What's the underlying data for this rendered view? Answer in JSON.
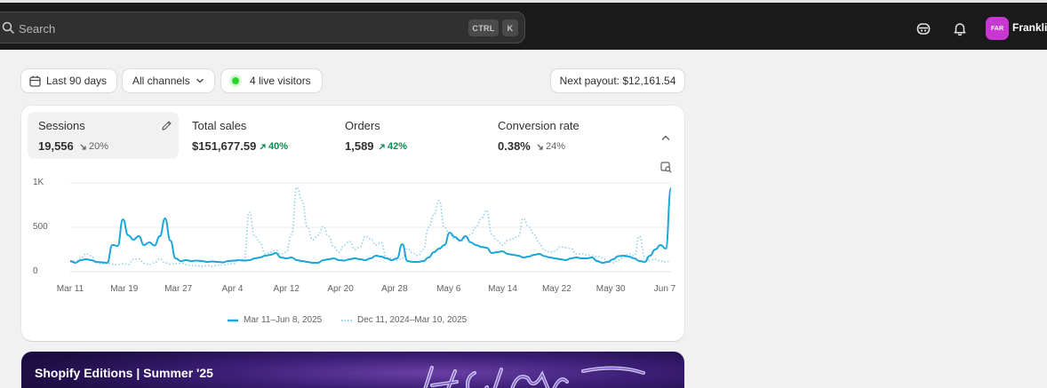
{
  "topbar": {
    "search_placeholder": "Search",
    "shortcut_ctrl": "CTRL",
    "shortcut_k": "K",
    "avatar_initials": "FAR",
    "user_name": "Franklin"
  },
  "filters": {
    "date_range": "Last 90 days",
    "channels": "All channels",
    "live_visitors": "4 live visitors",
    "payout": "Next payout: $12,161.54"
  },
  "metrics": [
    {
      "label": "Sessions",
      "value": "19,556",
      "delta": "20%",
      "direction": "down",
      "active": true
    },
    {
      "label": "Total sales",
      "value": "$151,677.59",
      "delta": "40%",
      "direction": "up",
      "active": false
    },
    {
      "label": "Orders",
      "value": "1,589",
      "delta": "42%",
      "direction": "up",
      "active": false
    },
    {
      "label": "Conversion rate",
      "value": "0.38%",
      "delta": "24%",
      "direction": "down",
      "active": false
    }
  ],
  "chart_data": {
    "type": "line",
    "y_ticks": [
      "1K",
      "500",
      "0"
    ],
    "ylim": [
      0,
      1000
    ],
    "x_ticks": [
      "Mar 11",
      "Mar 19",
      "Mar 27",
      "Apr 4",
      "Apr 12",
      "Apr 20",
      "Apr 28",
      "May 6",
      "May 14",
      "May 22",
      "May 30",
      "Jun 7"
    ],
    "grid": true,
    "legend_position": "bottom-center",
    "series": [
      {
        "name": "Mar 11–Jun 8, 2025",
        "style": "solid",
        "color": "#1ba6dc",
        "values": [
          120,
          100,
          130,
          140,
          130,
          110,
          105,
          100,
          300,
          290,
          590,
          410,
          360,
          400,
          300,
          330,
          295,
          400,
          600,
          350,
          150,
          120,
          130,
          120,
          125,
          120,
          110,
          115,
          110,
          105,
          120,
          125,
          130,
          125,
          130,
          150,
          160,
          180,
          190,
          210,
          160,
          150,
          160,
          130,
          120,
          110,
          100,
          100,
          130,
          140,
          150,
          130,
          125,
          140,
          150,
          140,
          130,
          150,
          180,
          170,
          150,
          130,
          150,
          310,
          120,
          110,
          110,
          120,
          160,
          220,
          260,
          300,
          440,
          390,
          350,
          400,
          330,
          300,
          280,
          270,
          210,
          220,
          230,
          200,
          190,
          180,
          160,
          170,
          190,
          200,
          175,
          160,
          150,
          140,
          130,
          150,
          160,
          150,
          150,
          160,
          120,
          100,
          110,
          140,
          175,
          180,
          170,
          150,
          120,
          110,
          180,
          250,
          300,
          260,
          940
        ]
      },
      {
        "name": "Dec 11, 2024–Mar 10, 2025",
        "style": "dotted",
        "color": "#8fd0ea",
        "values": [
          110,
          120,
          150,
          200,
          180,
          100,
          90,
          95,
          85,
          80,
          90,
          80,
          140,
          145,
          95,
          80,
          100,
          145,
          100,
          85,
          90,
          95,
          80,
          70,
          65,
          60,
          70,
          60,
          75,
          75,
          85,
          90,
          130,
          140,
          670,
          400,
          330,
          200,
          220,
          240,
          200,
          220,
          420,
          950,
          800,
          500,
          360,
          410,
          510,
          400,
          280,
          220,
          300,
          340,
          250,
          280,
          400,
          370,
          300,
          330,
          160,
          150,
          130,
          150,
          260,
          210,
          180,
          250,
          500,
          640,
          800,
          500,
          420,
          370,
          340,
          380,
          420,
          500,
          600,
          690,
          420,
          350,
          300,
          350,
          370,
          400,
          600,
          500,
          420,
          320,
          240,
          220,
          230,
          280,
          270,
          260,
          200,
          200,
          190,
          180,
          170,
          160,
          110,
          100,
          130,
          160,
          200,
          180,
          400,
          170,
          130,
          140,
          120,
          110,
          120
        ]
      }
    ]
  },
  "promo": {
    "title": "Shopify Editions | Summer '25"
  }
}
